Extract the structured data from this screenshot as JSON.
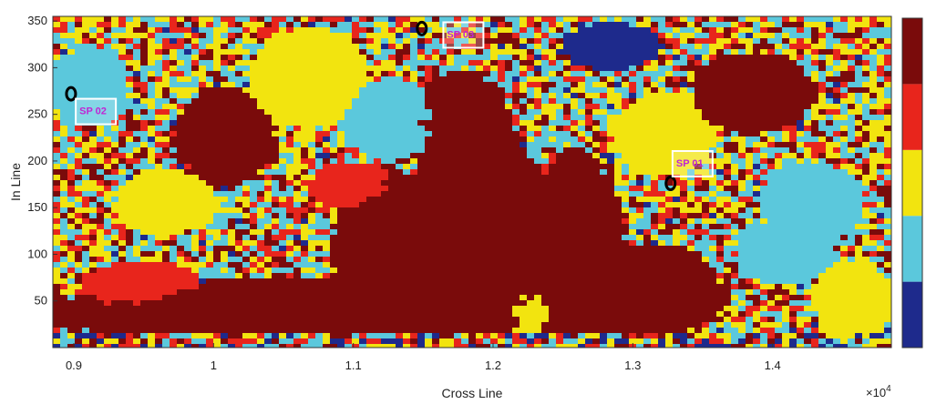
{
  "chart_data": {
    "type": "heatmap",
    "title": "",
    "xlabel": "Cross Line",
    "ylabel": "In Line",
    "x_exponent_label": "×10",
    "x_exponent_power": "4",
    "xlim": [
      0.885,
      1.485
    ],
    "ylim": [
      0,
      355
    ],
    "x_ticks": [
      0.9,
      1.0,
      1.1,
      1.2,
      1.3,
      1.4
    ],
    "x_tick_labels": [
      "0.9",
      "1",
      "1.1",
      "1.2",
      "1.3",
      "1.4"
    ],
    "y_ticks": [
      50,
      100,
      150,
      200,
      250,
      300,
      350
    ],
    "y_tick_labels": [
      "50",
      "100",
      "150",
      "200",
      "250",
      "300",
      "350"
    ],
    "colorbar": {
      "position": "right",
      "classes": 5,
      "colors": [
        "#1e2a8c",
        "#5bc8dc",
        "#f2e40f",
        "#e8251c",
        "#7a0b0b"
      ]
    },
    "wells": [
      {
        "label": "SP 01",
        "x": 1.327,
        "y": 176,
        "label_x": 1.331,
        "label_y": 198
      },
      {
        "label": "SP 02",
        "x": 0.898,
        "y": 272,
        "label_x": 0.904,
        "label_y": 254
      },
      {
        "label": "SP 03",
        "x": 1.149,
        "y": 342,
        "label_x": 1.167,
        "label_y": 336
      }
    ],
    "grid": false
  }
}
